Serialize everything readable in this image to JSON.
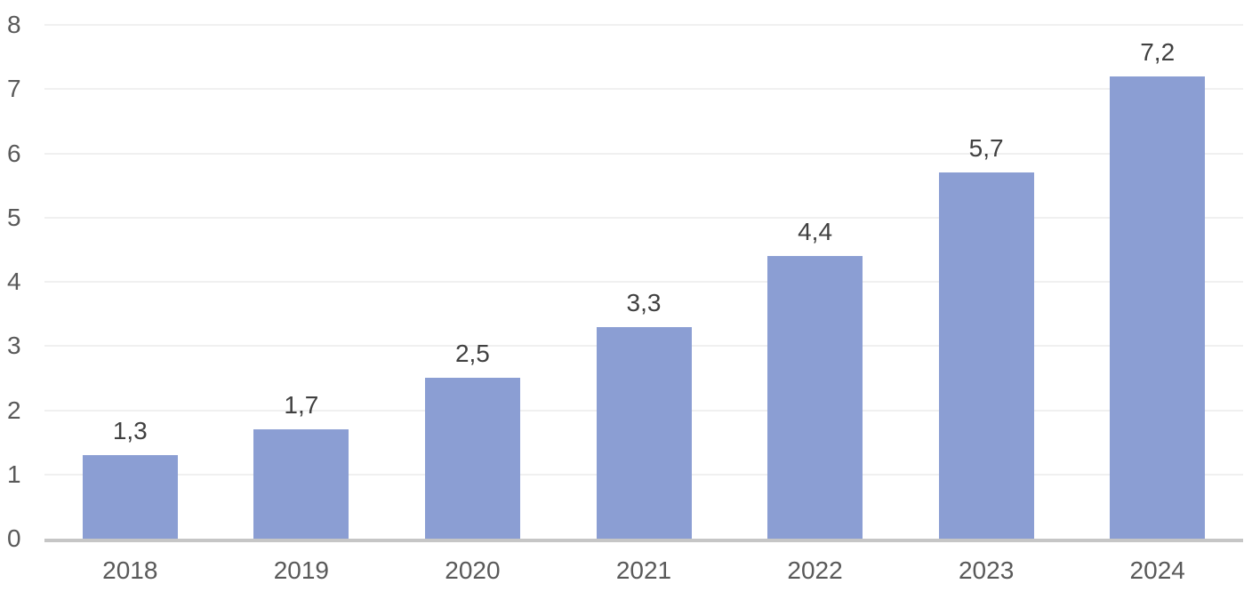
{
  "chart_data": {
    "type": "bar",
    "title": "",
    "xlabel": "",
    "ylabel": "",
    "categories": [
      "2018",
      "2019",
      "2020",
      "2021",
      "2022",
      "2023",
      "2024"
    ],
    "values": [
      1.3,
      1.7,
      2.5,
      3.3,
      4.4,
      5.7,
      7.2
    ],
    "data_labels": [
      "1,3",
      "1,7",
      "2,5",
      "3,3",
      "4,4",
      "5,7",
      "7,2"
    ],
    "decimal_separator": ",",
    "yticks": [
      0,
      1,
      2,
      3,
      4,
      5,
      6,
      7,
      8
    ],
    "ytick_labels": [
      "0",
      "1",
      "2",
      "3",
      "4",
      "5",
      "6",
      "7",
      "8"
    ],
    "ylim": [
      0,
      8
    ],
    "grid": "horizontal",
    "legend": "none",
    "colors": {
      "bar_fill": "#8B9ED3",
      "data_label_text": "#404040",
      "axis_tick_text": "#595959",
      "gridline": "#F0F0F0",
      "axis_line": "#C6C6C6",
      "background": "#FFFFFF"
    }
  }
}
